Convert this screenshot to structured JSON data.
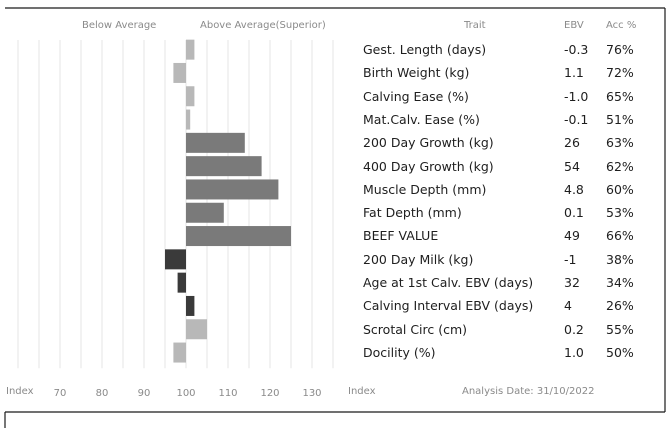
{
  "header": {
    "below": "Below Average",
    "above": "Above Average(Superior)",
    "trait": "Trait",
    "ebv": "EBV",
    "acc": "Acc %"
  },
  "footer": {
    "index_left": "Index",
    "index_right": "Index",
    "analysis_date": "Analysis Date: 31/10/2022"
  },
  "colors": {
    "positive": "#7a7a7a",
    "negative": "#3a3a3a",
    "light": "#b8b8b8",
    "grid": "#e6e6e6"
  },
  "chart_data": {
    "type": "bar",
    "orientation": "horizontal",
    "baseline": 100,
    "xlim": [
      60,
      140
    ],
    "xticks": [
      "70",
      "80",
      "90",
      "100",
      "110",
      "120",
      "130"
    ],
    "tick_values": [
      70,
      80,
      90,
      100,
      110,
      120,
      130
    ],
    "grid": true,
    "rows": [
      {
        "trait": "Gest. Length (days)",
        "ebv": "-0.3",
        "acc": "76%",
        "index": 102,
        "tone": "light"
      },
      {
        "trait": "Birth Weight (kg)",
        "ebv": "1.1",
        "acc": "72%",
        "index": 97,
        "tone": "light"
      },
      {
        "trait": "Calving Ease (%)",
        "ebv": "-1.0",
        "acc": "65%",
        "index": 102,
        "tone": "light"
      },
      {
        "trait": "Mat.Calv. Ease (%)",
        "ebv": "-0.1",
        "acc": "51%",
        "index": 101,
        "tone": "light"
      },
      {
        "trait": "200 Day Growth (kg)",
        "ebv": "26",
        "acc": "63%",
        "index": 114,
        "tone": "positive"
      },
      {
        "trait": "400 Day Growth (kg)",
        "ebv": "54",
        "acc": "62%",
        "index": 118,
        "tone": "positive"
      },
      {
        "trait": "Muscle Depth (mm)",
        "ebv": "4.8",
        "acc": "60%",
        "index": 122,
        "tone": "positive"
      },
      {
        "trait": "Fat Depth (mm)",
        "ebv": "0.1",
        "acc": "53%",
        "index": 109,
        "tone": "positive"
      },
      {
        "trait": "BEEF VALUE",
        "ebv": "49",
        "acc": "66%",
        "index": 125,
        "tone": "positive"
      },
      {
        "trait": "200 Day Milk (kg)",
        "ebv": "-1",
        "acc": "38%",
        "index": 95,
        "tone": "negative"
      },
      {
        "trait": "Age at 1st Calv. EBV (days)",
        "ebv": "32",
        "acc": "34%",
        "index": 98,
        "tone": "negative"
      },
      {
        "trait": "Calving Interval EBV (days)",
        "ebv": "4",
        "acc": "26%",
        "index": 102,
        "tone": "negative"
      },
      {
        "trait": "Scrotal Circ (cm)",
        "ebv": "0.2",
        "acc": "55%",
        "index": 105,
        "tone": "light"
      },
      {
        "trait": "Docility (%)",
        "ebv": "1.0",
        "acc": "50%",
        "index": 97,
        "tone": "light"
      }
    ]
  }
}
